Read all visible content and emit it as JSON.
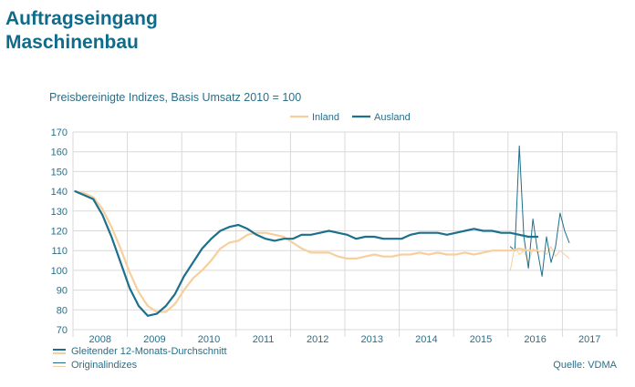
{
  "header": {
    "title_line1": "Auftragseingang",
    "title_line2": "Maschinenbau"
  },
  "footer": {
    "legend_avg": "Gleitender 12-Monats-Durchschnitt",
    "legend_orig": "Originalindizes",
    "source": "Quelle: VDMA"
  },
  "colors": {
    "inland": "#f6cf9c",
    "ausland": "#1c6f8d",
    "title": "#0f6b8c",
    "text": "#2a6f88"
  },
  "chart_data": {
    "type": "line",
    "subtitle": "Preisbereinigte Indizes, Basis Umsatz 2010 = 100",
    "ylim": [
      70,
      170
    ],
    "yticks": [
      70,
      80,
      90,
      100,
      110,
      120,
      130,
      140,
      150,
      160,
      170
    ],
    "x_start": "2008-01",
    "x_end": "2017-12",
    "x_ticklabels": [
      "2008",
      "2009",
      "2010",
      "2011",
      "2012",
      "2013",
      "2014",
      "2015",
      "2016",
      "2017"
    ],
    "grid": true,
    "legend_position": "top-center",
    "series": [
      {
        "name": "Inland",
        "kind": "moving-average",
        "x": [
          "2008-01",
          "2008-03",
          "2008-05",
          "2008-07",
          "2008-09",
          "2008-11",
          "2009-01",
          "2009-03",
          "2009-05",
          "2009-07",
          "2009-09",
          "2009-11",
          "2010-01",
          "2010-03",
          "2010-05",
          "2010-07",
          "2010-09",
          "2010-11",
          "2011-01",
          "2011-03",
          "2011-05",
          "2011-07",
          "2011-09",
          "2011-11",
          "2012-01",
          "2012-03",
          "2012-05",
          "2012-07",
          "2012-09",
          "2012-11",
          "2013-01",
          "2013-03",
          "2013-05",
          "2013-07",
          "2013-09",
          "2013-11",
          "2014-01",
          "2014-03",
          "2014-05",
          "2014-07",
          "2014-09",
          "2014-11",
          "2015-01",
          "2015-03",
          "2015-05",
          "2015-07",
          "2015-09",
          "2015-11",
          "2016-01",
          "2016-03",
          "2016-05",
          "2016-07"
        ],
        "values": [
          140,
          139,
          137,
          131,
          122,
          111,
          99,
          89,
          82,
          79,
          79,
          83,
          90,
          96,
          100,
          105,
          111,
          114,
          115,
          118,
          119,
          119,
          118,
          117,
          114,
          111,
          109,
          109,
          109,
          107,
          106,
          106,
          107,
          108,
          107,
          107,
          108,
          108,
          109,
          108,
          109,
          108,
          108,
          109,
          108,
          109,
          110,
          110,
          110,
          111,
          110,
          110
        ]
      },
      {
        "name": "Ausland",
        "kind": "moving-average",
        "x": [
          "2008-01",
          "2008-03",
          "2008-05",
          "2008-07",
          "2008-09",
          "2008-11",
          "2009-01",
          "2009-03",
          "2009-05",
          "2009-07",
          "2009-09",
          "2009-11",
          "2010-01",
          "2010-03",
          "2010-05",
          "2010-07",
          "2010-09",
          "2010-11",
          "2011-01",
          "2011-03",
          "2011-05",
          "2011-07",
          "2011-09",
          "2011-11",
          "2012-01",
          "2012-03",
          "2012-05",
          "2012-07",
          "2012-09",
          "2012-11",
          "2013-01",
          "2013-03",
          "2013-05",
          "2013-07",
          "2013-09",
          "2013-11",
          "2014-01",
          "2014-03",
          "2014-05",
          "2014-07",
          "2014-09",
          "2014-11",
          "2015-01",
          "2015-03",
          "2015-05",
          "2015-07",
          "2015-09",
          "2015-11",
          "2016-01",
          "2016-03",
          "2016-05",
          "2016-07"
        ],
        "values": [
          140,
          138,
          136,
          128,
          117,
          104,
          91,
          82,
          77,
          78,
          82,
          88,
          97,
          104,
          111,
          116,
          120,
          122,
          123,
          121,
          118,
          116,
          115,
          116,
          116,
          118,
          118,
          119,
          120,
          119,
          118,
          116,
          117,
          117,
          116,
          116,
          116,
          118,
          119,
          119,
          119,
          118,
          119,
          120,
          121,
          120,
          120,
          119,
          119,
          118,
          117,
          117
        ]
      },
      {
        "name": "Inland",
        "kind": "original",
        "x": [
          "2016-01",
          "2016-02",
          "2016-03",
          "2016-04",
          "2016-05",
          "2016-06",
          "2016-07",
          "2016-08",
          "2016-09",
          "2016-10",
          "2016-11",
          "2016-12",
          "2017-01",
          "2017-02"
        ],
        "values": [
          100,
          112,
          108,
          110,
          104,
          111,
          109,
          110,
          108,
          112,
          107,
          110,
          108,
          106
        ]
      },
      {
        "name": "Ausland",
        "kind": "original",
        "x": [
          "2016-01",
          "2016-02",
          "2016-03",
          "2016-04",
          "2016-05",
          "2016-06",
          "2016-07",
          "2016-08",
          "2016-09",
          "2016-10",
          "2016-11",
          "2016-12",
          "2017-01",
          "2017-02"
        ],
        "values": [
          112,
          110,
          163,
          117,
          101,
          126,
          110,
          97,
          117,
          104,
          112,
          129,
          120,
          114
        ]
      }
    ]
  }
}
